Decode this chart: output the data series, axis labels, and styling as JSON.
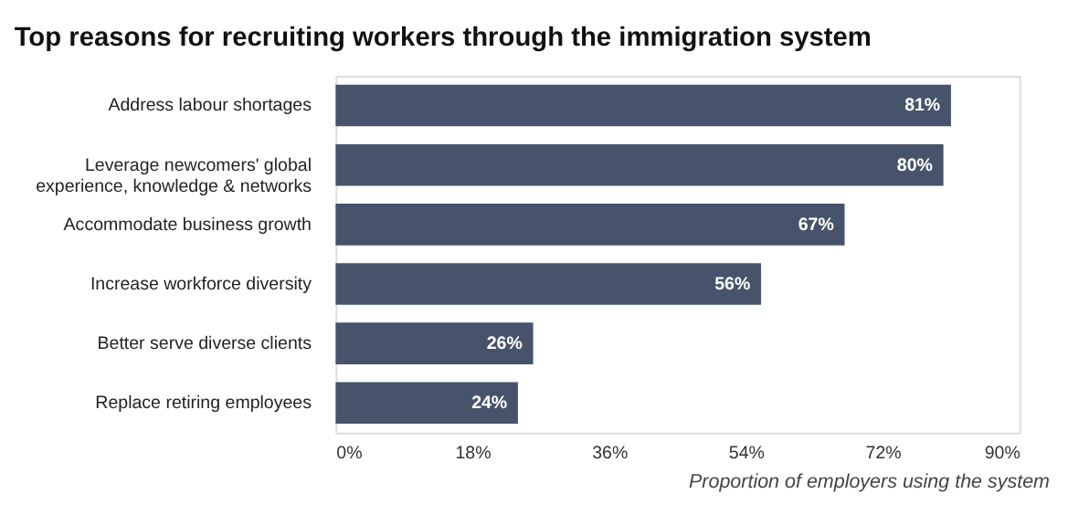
{
  "chart_data": {
    "type": "bar",
    "orientation": "horizontal",
    "title": "Top reasons for recruiting workers through the immigration system",
    "xlabel": "Proportion of employers using the system",
    "categories": [
      "Address labour shortages",
      "Leverage newcomers' global experience, knowledge & networks",
      "Accommodate business growth",
      "Increase workforce diversity",
      "Better serve diverse clients",
      "Replace retiring employees"
    ],
    "values": [
      81,
      80,
      67,
      56,
      26,
      24
    ],
    "value_labels": [
      "81%",
      "80%",
      "67%",
      "56%",
      "26%",
      "24%"
    ],
    "color": "#46536b",
    "xlim": [
      0,
      90
    ],
    "xticks": [
      {
        "value": 0,
        "label": "0%"
      },
      {
        "value": 18,
        "label": "18%"
      },
      {
        "value": 36,
        "label": "36%"
      },
      {
        "value": 54,
        "label": "54%"
      },
      {
        "value": 72,
        "label": "72%"
      },
      {
        "value": 90,
        "label": "90%"
      }
    ],
    "grid": false
  }
}
